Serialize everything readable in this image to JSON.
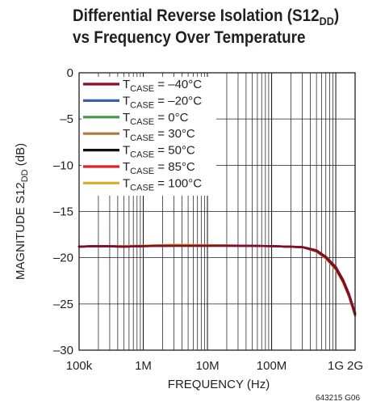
{
  "title_line1_pre": "Differential Reverse Isolation (S12",
  "title_line1_sub": "DD",
  "title_line1_post": ")",
  "title_line2": "vs Frequency Over Temperature",
  "figure_code": "643215 G06",
  "chart_data": {
    "type": "line",
    "xlabel": "FREQUENCY (Hz)",
    "ylabel": "MAGNITUDE S12DD (dB)",
    "ylabel_pre": "MAGNITUDE S12",
    "ylabel_sub": "DD",
    "ylabel_post": " (dB)",
    "xscale": "log",
    "xlim": [
      100000,
      2000000000
    ],
    "ylim": [
      -30,
      0
    ],
    "grid": true,
    "legend_position": "top-left",
    "x_ticks": [
      {
        "value": 100000,
        "label": "100k"
      },
      {
        "value": 1000000,
        "label": "1M"
      },
      {
        "value": 10000000,
        "label": "10M"
      },
      {
        "value": 100000000,
        "label": "100M"
      },
      {
        "value": 1000000000,
        "label": "1G"
      },
      {
        "value": 2000000000,
        "label": "2G"
      }
    ],
    "y_ticks": [
      {
        "value": 0,
        "label": "0"
      },
      {
        "value": -5,
        "label": "–5"
      },
      {
        "value": -10,
        "label": "–10"
      },
      {
        "value": -15,
        "label": "–15"
      },
      {
        "value": -20,
        "label": "–20"
      },
      {
        "value": -25,
        "label": "–25"
      },
      {
        "value": -30,
        "label": "–30"
      }
    ],
    "series": [
      {
        "name": "TCASE = –40°C",
        "label_pre": "T",
        "label_sub": "CASE",
        "label_post": " = –40°C",
        "color": "#8b0a25",
        "x": [
          100000,
          200000,
          500000,
          1000000,
          3000000,
          10000000,
          30000000,
          100000000,
          300000000,
          500000000,
          700000000,
          1000000000,
          1300000000,
          1600000000,
          2000000000
        ],
        "y": [
          -18.8,
          -18.75,
          -18.8,
          -18.75,
          -18.7,
          -18.7,
          -18.7,
          -18.75,
          -18.85,
          -19.2,
          -19.9,
          -21.0,
          -22.4,
          -23.9,
          -26.0
        ]
      },
      {
        "name": "TCASE = –20°C",
        "label_pre": "T",
        "label_sub": "CASE",
        "label_post": " = –20°C",
        "color": "#3a5fab",
        "x": [
          100000,
          200000,
          500000,
          1000000,
          3000000,
          10000000,
          30000000,
          100000000,
          300000000,
          500000000,
          700000000,
          1000000000,
          1300000000,
          1600000000,
          2000000000
        ],
        "y": [
          -18.8,
          -18.75,
          -18.8,
          -18.75,
          -18.7,
          -18.7,
          -18.7,
          -18.75,
          -18.85,
          -19.2,
          -19.9,
          -21.0,
          -22.4,
          -23.9,
          -26.0
        ]
      },
      {
        "name": "TCASE = 0°C",
        "label_pre": "T",
        "label_sub": "CASE",
        "label_post": " = 0°C",
        "color": "#3d9a47",
        "x": [
          100000,
          200000,
          500000,
          1000000,
          3000000,
          10000000,
          30000000,
          100000000,
          300000000,
          500000000,
          700000000,
          1000000000,
          1300000000,
          1600000000,
          2000000000
        ],
        "y": [
          -18.8,
          -18.75,
          -18.8,
          -18.75,
          -18.7,
          -18.7,
          -18.7,
          -18.75,
          -18.85,
          -19.2,
          -19.9,
          -21.0,
          -22.4,
          -23.9,
          -26.0
        ]
      },
      {
        "name": "TCASE = 30°C",
        "label_pre": "T",
        "label_sub": "CASE",
        "label_post": " = 30°C",
        "color": "#b5773a",
        "x": [
          100000,
          200000,
          500000,
          1000000,
          3000000,
          10000000,
          30000000,
          100000000,
          300000000,
          500000000,
          700000000,
          1000000000,
          1300000000,
          1600000000,
          2000000000
        ],
        "y": [
          -18.8,
          -18.75,
          -18.75,
          -18.7,
          -18.65,
          -18.65,
          -18.7,
          -18.75,
          -18.85,
          -19.3,
          -20.0,
          -21.2,
          -22.6,
          -24.1,
          -26.2
        ]
      },
      {
        "name": "TCASE = 50°C",
        "label_pre": "T",
        "label_sub": "CASE",
        "label_post": " = 50°C",
        "color": "#111111",
        "x": [
          100000,
          200000,
          500000,
          1000000,
          3000000,
          10000000,
          30000000,
          100000000,
          300000000,
          500000000,
          700000000,
          1000000000,
          1300000000,
          1600000000,
          2000000000
        ],
        "y": [
          -18.8,
          -18.75,
          -18.8,
          -18.75,
          -18.7,
          -18.7,
          -18.7,
          -18.75,
          -18.85,
          -19.25,
          -19.95,
          -21.1,
          -22.5,
          -24.0,
          -26.1
        ]
      },
      {
        "name": "TCASE = 85°C",
        "label_pre": "T",
        "label_sub": "CASE",
        "label_post": " = 85°C",
        "color": "#d9222a",
        "x": [
          100000,
          200000,
          500000,
          1000000,
          3000000,
          10000000,
          30000000,
          100000000,
          300000000,
          500000000,
          700000000,
          1000000000,
          1300000000,
          1600000000,
          2000000000
        ],
        "y": [
          -18.8,
          -18.75,
          -18.8,
          -18.75,
          -18.7,
          -18.7,
          -18.7,
          -18.75,
          -18.85,
          -19.3,
          -20.0,
          -21.2,
          -22.6,
          -24.1,
          -26.2
        ]
      },
      {
        "name": "TCASE = 100°C",
        "label_pre": "T",
        "label_sub": "CASE",
        "label_post": " = 100°C",
        "color": "#d4b12a",
        "x": [
          100000,
          200000,
          500000,
          1000000,
          3000000,
          10000000,
          30000000,
          100000000,
          300000000,
          500000000,
          700000000,
          1000000000,
          1300000000,
          1600000000,
          2000000000
        ],
        "y": [
          -18.8,
          -18.75,
          -18.75,
          -18.7,
          -18.6,
          -18.65,
          -18.7,
          -18.75,
          -18.85,
          -19.35,
          -20.1,
          -21.3,
          -22.7,
          -24.2,
          -26.3
        ]
      }
    ],
    "draw_order": [
      3,
      6,
      5,
      2,
      4,
      1,
      0
    ]
  }
}
